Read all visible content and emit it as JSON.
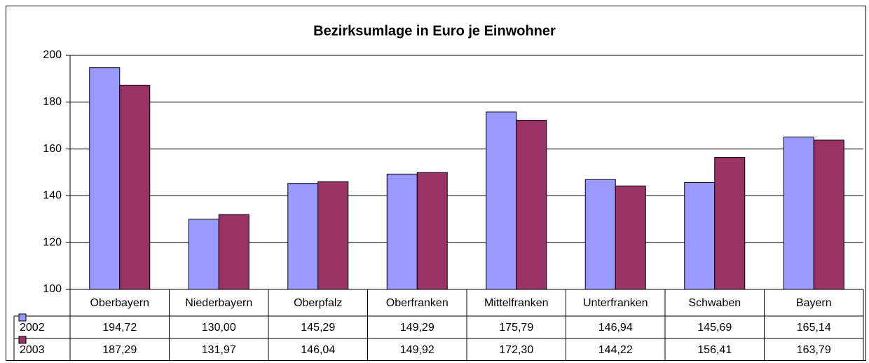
{
  "chart_data": {
    "type": "bar",
    "title": "Bezirksumlage in Euro je Einwohner",
    "categories": [
      "Oberbayern",
      "Niederbayern",
      "Oberpfalz",
      "Oberfranken",
      "Mittelfranken",
      "Unterfranken",
      "Schwaben",
      "Bayern"
    ],
    "series": [
      {
        "name": "2002",
        "color": "#9999ff",
        "values": [
          194.72,
          130.0,
          145.29,
          149.29,
          175.79,
          146.94,
          145.69,
          165.14
        ],
        "value_labels": [
          "194,72",
          "130,00",
          "145,29",
          "149,29",
          "175,79",
          "146,94",
          "145,69",
          "165,14"
        ]
      },
      {
        "name": "2003",
        "color": "#993366",
        "values": [
          187.29,
          131.97,
          146.04,
          149.92,
          172.3,
          144.22,
          156.41,
          163.79
        ],
        "value_labels": [
          "187,29",
          "131,97",
          "146,04",
          "149,92",
          "172,30",
          "144,22",
          "156,41",
          "163,79"
        ]
      }
    ],
    "ylim": [
      100,
      200
    ],
    "yticks": [
      100,
      120,
      140,
      160,
      180,
      200
    ],
    "grid": true
  }
}
